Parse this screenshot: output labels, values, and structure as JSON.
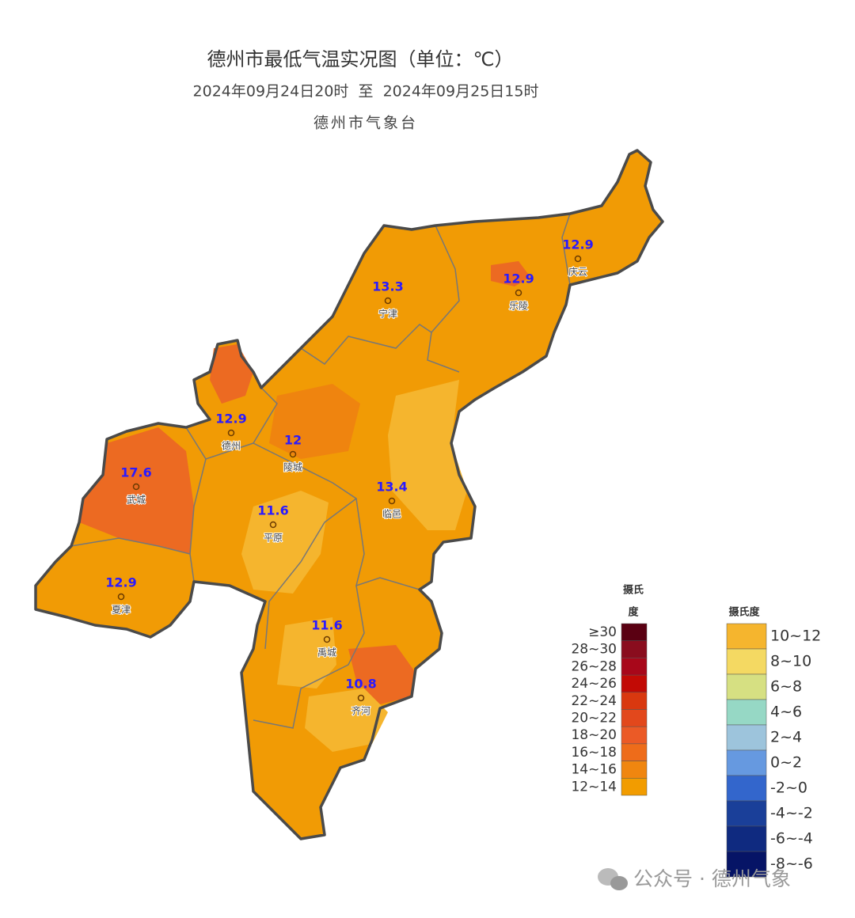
{
  "header": {
    "title": "德州市最低气温实况图（单位：℃）",
    "time_range": "2024年09月24日20时  至  2024年09月25日15时",
    "source": "德州市气象台"
  },
  "stations": [
    {
      "name": "庆云",
      "value": 12.9
    },
    {
      "name": "乐陵",
      "value": 12.9
    },
    {
      "name": "宁津",
      "value": 13.3
    },
    {
      "name": "德州",
      "value": 12.9
    },
    {
      "name": "陵城",
      "value": 12
    },
    {
      "name": "武城",
      "value": 17.6
    },
    {
      "name": "临邑",
      "value": 13.4
    },
    {
      "name": "平原",
      "value": 11.6
    },
    {
      "name": "夏津",
      "value": 12.9
    },
    {
      "name": "禹城",
      "value": 11.6
    },
    {
      "name": "齐河",
      "value": 10.8
    }
  ],
  "legend_warm": {
    "title_line1": "摄氏",
    "title_line2": "度",
    "items": [
      {
        "label": "≥30",
        "color": "#5a0012"
      },
      {
        "label": "28~30",
        "color": "#8a0d1e"
      },
      {
        "label": "26~28",
        "color": "#a8071a"
      },
      {
        "label": "24~26",
        "color": "#c20a05"
      },
      {
        "label": "22~24",
        "color": "#d9380f"
      },
      {
        "label": "20~22",
        "color": "#e2481c"
      },
      {
        "label": "18~20",
        "color": "#eb5a26"
      },
      {
        "label": "16~18",
        "color": "#ee6c1a"
      },
      {
        "label": "14~16",
        "color": "#f0860f"
      },
      {
        "label": "12~14",
        "color": "#f29c00"
      }
    ]
  },
  "legend_cool": {
    "title": "摄氏度",
    "items": [
      {
        "label": "10~12",
        "color": "#f5b52e"
      },
      {
        "label": "8~10",
        "color": "#f4d962"
      },
      {
        "label": "6~8",
        "color": "#d6e082"
      },
      {
        "label": "4~6",
        "color": "#96d8c5"
      },
      {
        "label": "2~4",
        "color": "#9dc4dc"
      },
      {
        "label": "0~2",
        "color": "#6699e0"
      },
      {
        "label": "-2~0",
        "color": "#3366cc"
      },
      {
        "label": "-4~-2",
        "color": "#1a3f99"
      },
      {
        "label": "-6~-4",
        "color": "#0f2a80"
      },
      {
        "label": "-8~-6",
        "color": "#061466"
      }
    ]
  },
  "watermark": "公众号 · 德州气象"
}
